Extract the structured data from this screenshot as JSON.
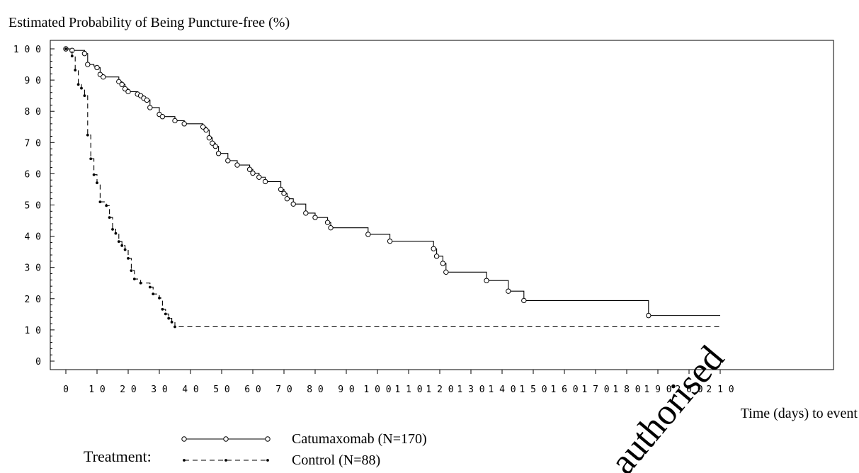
{
  "chart_data": {
    "type": "line",
    "title": "Estimated Probability of Being Puncture-free (%)",
    "xlabel": "Time (days) to event",
    "ylabel": "",
    "xlim": [
      0,
      210
    ],
    "ylim": [
      0,
      100
    ],
    "x_ticks": [
      "0",
      "10",
      "20",
      "30",
      "40",
      "50",
      "60",
      "70",
      "80",
      "90",
      "100",
      "110",
      "120",
      "130",
      "140",
      "150",
      "160",
      "170",
      "180",
      "190",
      "200",
      "210"
    ],
    "y_ticks": [
      "0",
      "10",
      "20",
      "30",
      "40",
      "50",
      "60",
      "70",
      "80",
      "90",
      "100"
    ],
    "grid": false,
    "legend": {
      "title": "Treatment:",
      "placement": "bottom-left"
    },
    "watermark": "authorised",
    "series": [
      {
        "name": "Catumaxomab (N=170)",
        "line_style": "solid",
        "marker": "open-circle",
        "step_points": [
          [
            0,
            100
          ],
          [
            2,
            99.5
          ],
          [
            6,
            98.5
          ],
          [
            7,
            95
          ],
          [
            9,
            94.5
          ],
          [
            10,
            94
          ],
          [
            11,
            91.8
          ],
          [
            12,
            91
          ],
          [
            17,
            89.5
          ],
          [
            18,
            88.6
          ],
          [
            19,
            87.2
          ],
          [
            20,
            86.3
          ],
          [
            23,
            85.5
          ],
          [
            24,
            85
          ],
          [
            25,
            84.2
          ],
          [
            26,
            83.6
          ],
          [
            27,
            81.2
          ],
          [
            30,
            79
          ],
          [
            31,
            78.3
          ],
          [
            35,
            77
          ],
          [
            38,
            76
          ],
          [
            44,
            75
          ],
          [
            45,
            74
          ],
          [
            46,
            71.5
          ],
          [
            47,
            69.8
          ],
          [
            48,
            68.8
          ],
          [
            49,
            66.5
          ],
          [
            52,
            64.2
          ],
          [
            55,
            62.8
          ],
          [
            59,
            61.4
          ],
          [
            60,
            60.2
          ],
          [
            62,
            58.9
          ],
          [
            64,
            57.5
          ],
          [
            69,
            55
          ],
          [
            70,
            53.7
          ],
          [
            71,
            52
          ],
          [
            73,
            50.3
          ],
          [
            77,
            47.4
          ],
          [
            80,
            46
          ],
          [
            84,
            44.4
          ],
          [
            85,
            42.7
          ],
          [
            97,
            40.6
          ],
          [
            104,
            38.4
          ],
          [
            118,
            36
          ],
          [
            119,
            33.6
          ],
          [
            121,
            31.3
          ],
          [
            122,
            28.5
          ],
          [
            135,
            25.8
          ],
          [
            142,
            22.4
          ],
          [
            147,
            19.4
          ],
          [
            187,
            14.6
          ],
          [
            210,
            14.6
          ]
        ],
        "censored": [
          [
            0,
            100
          ],
          [
            2,
            99.5
          ],
          [
            6,
            98.5
          ],
          [
            7,
            95
          ],
          [
            10,
            94
          ],
          [
            11,
            91.8
          ],
          [
            12,
            91
          ],
          [
            17,
            89.5
          ],
          [
            18,
            88.6
          ],
          [
            19,
            87.2
          ],
          [
            20,
            86.3
          ],
          [
            23,
            85.5
          ],
          [
            24,
            85
          ],
          [
            25,
            84.2
          ],
          [
            26,
            83.6
          ],
          [
            27,
            81.2
          ],
          [
            30,
            79
          ],
          [
            31,
            78.3
          ],
          [
            35,
            77
          ],
          [
            38,
            76
          ],
          [
            44,
            75
          ],
          [
            45,
            74
          ],
          [
            46,
            71.5
          ],
          [
            47,
            69.8
          ],
          [
            48,
            68.8
          ],
          [
            49,
            66.5
          ],
          [
            52,
            64.2
          ],
          [
            55,
            62.8
          ],
          [
            59,
            61.4
          ],
          [
            60,
            60.2
          ],
          [
            62,
            58.9
          ],
          [
            64,
            57.5
          ],
          [
            69,
            55
          ],
          [
            70,
            53.7
          ],
          [
            71,
            52
          ],
          [
            73,
            50.3
          ],
          [
            77,
            47.4
          ],
          [
            80,
            46
          ],
          [
            84,
            44.4
          ],
          [
            85,
            42.7
          ],
          [
            97,
            40.6
          ],
          [
            104,
            38.4
          ],
          [
            118,
            36
          ],
          [
            119,
            33.6
          ],
          [
            121,
            31.3
          ],
          [
            122,
            28.5
          ],
          [
            135,
            25.8
          ],
          [
            142,
            22.4
          ],
          [
            147,
            19.4
          ],
          [
            187,
            14.6
          ]
        ]
      },
      {
        "name": "Control (N=88)",
        "line_style": "dashed",
        "marker": "filled-dot",
        "step_points": [
          [
            0,
            100
          ],
          [
            2,
            97.7
          ],
          [
            3,
            93.2
          ],
          [
            4,
            88.6
          ],
          [
            5,
            87.4
          ],
          [
            6,
            85
          ],
          [
            7,
            72.4
          ],
          [
            8,
            64.8
          ],
          [
            9,
            59.7
          ],
          [
            10,
            57.1
          ],
          [
            11,
            51
          ],
          [
            13,
            49.8
          ],
          [
            14,
            46
          ],
          [
            15,
            42.2
          ],
          [
            16,
            40.9
          ],
          [
            17,
            38.3
          ],
          [
            18,
            37
          ],
          [
            19,
            35.7
          ],
          [
            20,
            32.9
          ],
          [
            21,
            29
          ],
          [
            22,
            26.3
          ],
          [
            24,
            25
          ],
          [
            27,
            23.7
          ],
          [
            28,
            21.5
          ],
          [
            30,
            20.2
          ],
          [
            31,
            16.6
          ],
          [
            32,
            15.1
          ],
          [
            33,
            13.7
          ],
          [
            34,
            12.5
          ],
          [
            35,
            11
          ],
          [
            210,
            11
          ]
        ],
        "censored": [
          [
            0,
            100
          ],
          [
            2,
            97.7
          ],
          [
            3,
            93.2
          ],
          [
            4,
            88.6
          ],
          [
            5,
            87.4
          ],
          [
            6,
            85
          ],
          [
            7,
            72.4
          ],
          [
            8,
            64.8
          ],
          [
            9,
            59.7
          ],
          [
            10,
            57.1
          ],
          [
            11,
            51
          ],
          [
            13,
            49.8
          ],
          [
            14,
            46
          ],
          [
            15,
            42.2
          ],
          [
            16,
            40.9
          ],
          [
            17,
            38.3
          ],
          [
            18,
            37
          ],
          [
            19,
            35.7
          ],
          [
            20,
            32.9
          ],
          [
            21,
            29
          ],
          [
            22,
            26.3
          ],
          [
            24,
            25
          ],
          [
            27,
            23.7
          ],
          [
            28,
            21.5
          ],
          [
            30,
            20.2
          ],
          [
            31,
            16.6
          ],
          [
            32,
            15.1
          ],
          [
            33,
            13.7
          ],
          [
            34,
            12.5
          ],
          [
            35,
            11
          ]
        ]
      }
    ]
  }
}
